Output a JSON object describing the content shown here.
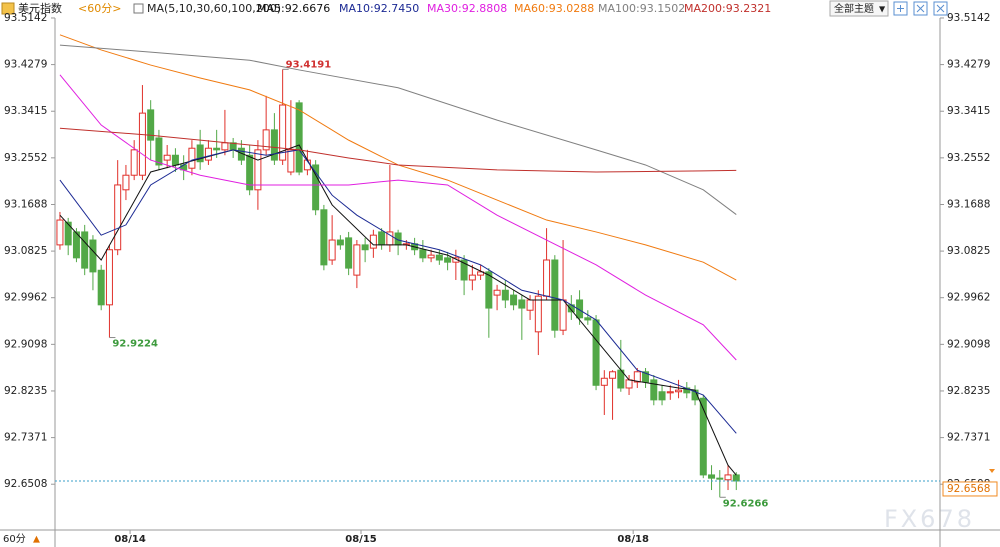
{
  "chart_data": {
    "type": "candlestick",
    "title": "美元指数",
    "period": "<60分>",
    "indicator": "MA(5,10,30,60,100,200)",
    "up_color": "#e0302a",
    "down_color": "#52a847",
    "open": [
      93.094,
      93.136,
      93.118,
      93.118,
      93.103,
      93.047,
      92.983,
      93.085,
      93.196,
      93.223,
      93.223,
      93.344,
      93.292,
      93.251,
      93.26,
      93.242,
      93.236,
      93.279,
      93.251,
      93.273,
      93.27,
      93.283,
      93.273,
      93.26,
      93.196,
      93.27,
      93.307,
      93.251,
      93.229,
      93.357,
      93.233,
      93.242,
      93.159,
      93.066,
      93.103,
      93.107,
      93.038,
      93.094,
      93.088,
      93.118,
      93.094,
      93.116,
      93.094,
      93.096,
      93.085,
      93.07,
      93.075,
      93.07,
      93.062,
      93.066,
      93.029,
      93.038,
      93.044,
      93.001,
      93.01,
      93.001,
      92.992,
      92.973,
      92.933,
      92.999,
      93.066,
      92.936,
      92.983,
      92.992,
      92.959,
      92.955,
      92.834,
      92.847,
      92.862,
      92.829,
      92.84,
      92.859,
      92.844,
      92.822,
      92.82,
      92.822,
      92.829,
      92.825,
      92.81,
      92.668,
      92.662,
      92.659,
      92.668
    ],
    "high": [
      93.155,
      93.144,
      93.125,
      93.131,
      93.112,
      93.057,
      93.094,
      93.251,
      93.242,
      93.288,
      93.39,
      93.362,
      93.307,
      93.279,
      93.273,
      93.26,
      93.288,
      93.307,
      93.288,
      93.307,
      93.344,
      93.292,
      93.288,
      93.279,
      93.288,
      93.37,
      93.338,
      93.4191,
      93.362,
      93.362,
      93.27,
      93.251,
      93.168,
      93.149,
      93.112,
      93.118,
      93.103,
      93.107,
      93.122,
      93.125,
      93.242,
      93.122,
      93.103,
      93.107,
      93.103,
      93.085,
      93.085,
      93.081,
      93.085,
      93.075,
      93.057,
      93.057,
      93.051,
      93.02,
      93.029,
      93.01,
      93.001,
      93.001,
      93.01,
      93.125,
      93.075,
      93.103,
      93.001,
      93.01,
      92.973,
      92.964,
      92.862,
      92.862,
      92.918,
      92.853,
      92.866,
      92.866,
      92.853,
      92.834,
      92.834,
      92.844,
      92.84,
      92.834,
      92.816,
      92.686,
      92.677,
      92.686,
      92.673
    ],
    "low": [
      93.085,
      93.075,
      93.062,
      93.038,
      93.01,
      92.973,
      92.9224,
      93.075,
      93.177,
      93.214,
      93.214,
      93.251,
      93.233,
      93.236,
      93.229,
      93.214,
      93.223,
      93.233,
      93.242,
      93.255,
      93.26,
      93.255,
      93.242,
      93.186,
      93.159,
      93.26,
      93.242,
      93.242,
      93.223,
      93.223,
      93.223,
      93.149,
      93.047,
      93.057,
      93.085,
      93.038,
      93.014,
      93.062,
      93.07,
      93.085,
      93.081,
      93.075,
      93.085,
      93.075,
      93.062,
      93.062,
      93.057,
      93.047,
      93.029,
      93.001,
      93.01,
      93.029,
      92.922,
      92.973,
      92.977,
      92.973,
      92.918,
      92.955,
      92.89,
      92.992,
      92.922,
      92.927,
      92.955,
      92.946,
      92.946,
      92.825,
      92.779,
      92.77,
      92.822,
      92.816,
      92.829,
      92.829,
      92.797,
      92.797,
      92.807,
      92.81,
      92.81,
      92.797,
      92.662,
      92.64,
      92.6266,
      92.64,
      92.64
    ],
    "close": [
      93.14,
      93.094,
      93.07,
      93.051,
      93.044,
      92.983,
      93.085,
      93.205,
      93.223,
      93.27,
      93.338,
      93.288,
      93.242,
      93.26,
      93.242,
      93.233,
      93.273,
      93.248,
      93.273,
      93.27,
      93.283,
      93.27,
      93.251,
      93.196,
      93.27,
      93.307,
      93.251,
      93.353,
      93.27,
      93.229,
      93.251,
      93.159,
      93.057,
      93.103,
      93.094,
      93.051,
      93.094,
      93.085,
      93.112,
      93.094,
      93.118,
      93.094,
      93.096,
      93.085,
      93.07,
      93.075,
      93.066,
      93.062,
      93.07,
      93.029,
      93.038,
      93.044,
      92.977,
      93.01,
      92.992,
      92.983,
      92.977,
      92.992,
      92.999,
      93.066,
      92.936,
      92.992,
      92.97,
      92.959,
      92.955,
      92.834,
      92.847,
      92.859,
      92.829,
      92.844,
      92.859,
      92.84,
      92.807,
      92.807,
      92.822,
      92.825,
      92.82,
      92.807,
      92.668,
      92.662,
      92.661,
      92.668,
      92.6568
    ],
    "series": [
      {
        "name": "MA5:92.6676",
        "color": "#111111",
        "x": [
          0,
          5,
          11,
          21,
          24,
          29,
          33,
          38,
          42,
          47,
          52,
          57,
          61,
          65,
          69,
          75,
          77,
          81,
          82
        ],
        "values": [
          93.149,
          93.066,
          93.229,
          93.27,
          93.251,
          93.279,
          93.168,
          93.094,
          93.094,
          93.075,
          93.038,
          92.992,
          92.992,
          92.918,
          92.844,
          92.829,
          92.825,
          92.686,
          92.6676
        ]
      },
      {
        "name": "MA10:92.7450",
        "color": "#1c2a94",
        "x": [
          0,
          5,
          8,
          11,
          16,
          21,
          25,
          29,
          33,
          36,
          41,
          46,
          51,
          56,
          61,
          65,
          70,
          75,
          78,
          82
        ],
        "values": [
          93.214,
          93.112,
          93.131,
          93.205,
          93.251,
          93.27,
          93.26,
          93.27,
          93.186,
          93.149,
          93.103,
          93.085,
          93.057,
          93.01,
          92.992,
          92.955,
          92.862,
          92.834,
          92.816,
          92.745
        ]
      },
      {
        "name": "MA30:92.8808",
        "color": "#e01fe0",
        "x": [
          0,
          5,
          11,
          17,
          23,
          29,
          35,
          41,
          47,
          53,
          59,
          65,
          71,
          78,
          82
        ],
        "values": [
          93.409,
          93.316,
          93.251,
          93.223,
          93.205,
          93.205,
          93.205,
          93.214,
          93.205,
          93.149,
          93.103,
          93.057,
          93.001,
          92.946,
          92.8808
        ]
      },
      {
        "name": "MA60:93.0288",
        "color": "#f07a10",
        "x": [
          0,
          5,
          11,
          17,
          23,
          29,
          35,
          41,
          47,
          53,
          59,
          65,
          71,
          78,
          82
        ],
        "values": [
          93.483,
          93.455,
          93.427,
          93.403,
          93.381,
          93.344,
          93.288,
          93.242,
          93.214,
          93.177,
          93.14,
          93.118,
          93.094,
          93.062,
          93.0288
        ]
      },
      {
        "name": "MA100:93.1502",
        "color": "#808080",
        "x": [
          0,
          11,
          23,
          29,
          41,
          53,
          65,
          71,
          78,
          82
        ],
        "values": [
          93.464,
          93.451,
          93.436,
          93.418,
          93.385,
          93.325,
          93.27,
          93.242,
          93.196,
          93.1502
        ]
      },
      {
        "name": "MA200:93.2321",
        "color": "#c0302c",
        "x": [
          0,
          11,
          23,
          29,
          35,
          41,
          53,
          65,
          78,
          82
        ],
        "values": [
          93.31,
          93.297,
          93.279,
          93.27,
          93.255,
          93.242,
          93.233,
          93.229,
          93.231,
          93.2321
        ]
      }
    ],
    "extremes": [
      {
        "index": 27,
        "value": 93.4191,
        "color": "#d03030"
      },
      {
        "index": 6,
        "value": 92.9224,
        "color": "#3c9a3c"
      },
      {
        "index": 80,
        "value": 92.6266,
        "color": "#3c9a3c"
      }
    ],
    "last_price": 92.6568,
    "xlim": [
      -0.6,
      106.7
    ],
    "xticks": [
      {
        "value": 8.5,
        "label": "08/14"
      },
      {
        "value": 36.5,
        "label": "08/15"
      },
      {
        "value": 69.5,
        "label": "08/18"
      }
    ],
    "ylim": [
      92.566,
      93.5475
    ],
    "yticks": [
      93.5142,
      93.4279,
      93.3415,
      93.2552,
      93.1688,
      93.0825,
      92.9962,
      92.9098,
      92.8235,
      92.7371,
      92.6508
    ],
    "grid": false
  },
  "toolbar": {
    "theme_button": "全部主题",
    "period_button": "60分"
  },
  "watermark": "FX678"
}
